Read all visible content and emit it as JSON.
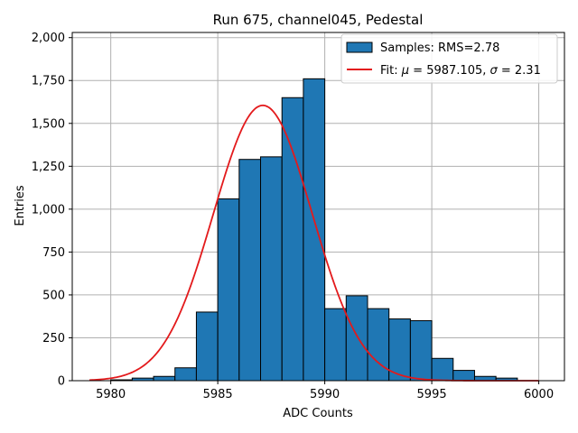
{
  "chart_data": {
    "type": "bar",
    "title": "Run 675, channel045, Pedestal",
    "xlabel": "ADC Counts",
    "ylabel": "Entries",
    "xlim": [
      5978.2,
      6001.2
    ],
    "ylim": [
      0,
      2030
    ],
    "xticks": [
      5980,
      5985,
      5990,
      5995,
      6000
    ],
    "yticks": [
      0,
      250,
      500,
      750,
      1000,
      1250,
      1500,
      1750,
      2000
    ],
    "grid": true,
    "legend_position": "top-right",
    "histogram": {
      "name": "Samples: RMS=2.78",
      "color": "#1f77b4",
      "bin_edges": [
        5980,
        5981,
        5982,
        5983,
        5984,
        5985,
        5986,
        5987,
        5988,
        5989,
        5990,
        5991,
        5992,
        5993,
        5994,
        5995,
        5996,
        5997,
        5998
      ],
      "values": [
        5,
        15,
        25,
        75,
        400,
        1060,
        1290,
        1305,
        1650,
        1760,
        420,
        495,
        420,
        360,
        350,
        130,
        60,
        25,
        15
      ]
    },
    "fit": {
      "name": "Fit: μ = 5987.105, σ = 2.31",
      "name_prefix": "Fit: ",
      "mu_symbol": "μ",
      "mu_text": " = 5987.105, ",
      "sigma_symbol": "σ",
      "sigma_text": " = 2.31",
      "color": "#e31a1c",
      "mu": 5987.105,
      "sigma": 2.31,
      "amplitude": 1605,
      "x_range": [
        5979,
        6000
      ]
    }
  }
}
